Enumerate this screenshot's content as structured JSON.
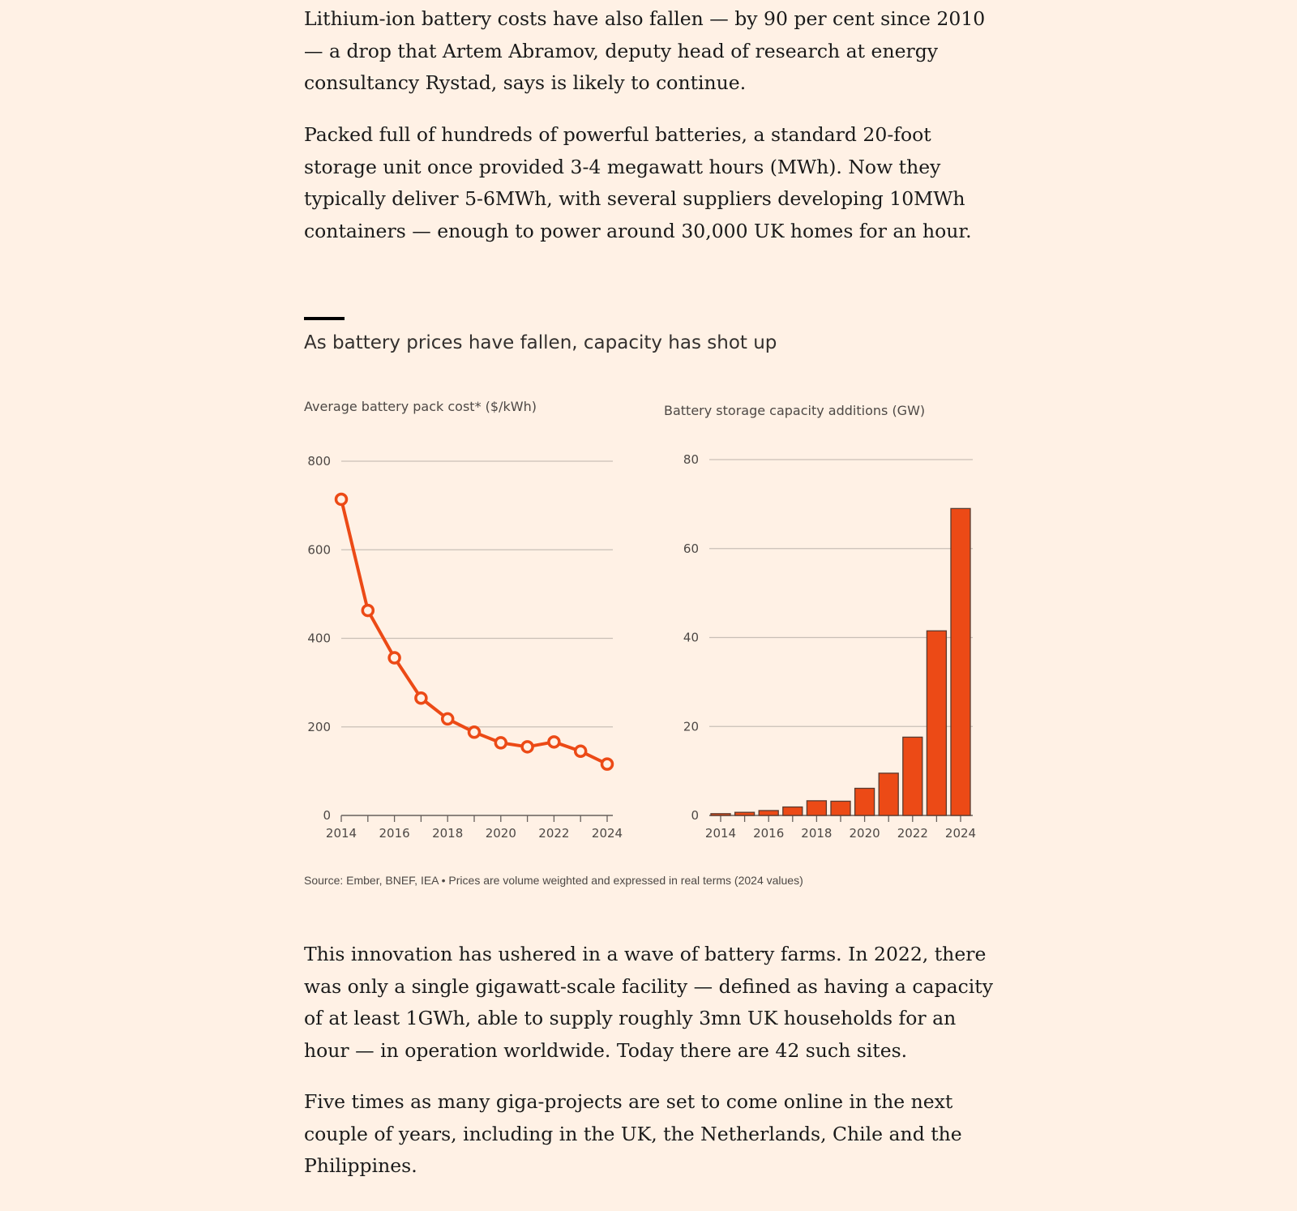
{
  "article": {
    "paragraphs": [
      "Lithium-ion battery costs have also fallen — by 90 per cent since 2010 — a drop that Artem Abramov, deputy head of research at energy consultancy Rystad, says is likely to continue.",
      "Packed full of hundreds of powerful batteries, a standard 20-foot storage unit once provided 3-4 megawatt hours (MWh). Now they typically deliver 5-6MWh, with several suppliers developing 10MWh containers — enough to power around 30,000 UK homes for an hour.",
      "This innovation has ushered in a wave of battery farms. In 2022, there was only a single gigawatt-scale facility — defined as having a capacity of at least 1GWh, able to supply roughly 3mn UK households for an hour — in operation worldwide. Today there are 42 such sites.",
      "Five times as many giga-projects are set to come online in the next couple of years, including in the UK, the Netherlands, Chile and the Philippines."
    ]
  },
  "figure": {
    "title": "As battery prices have fallen, capacity has shot up",
    "source": "Source: Ember, BNEF, IEA • Prices are volume weighted and expressed in real terms (2024 values)"
  },
  "colors": {
    "accent": "#ec4a16",
    "grid": "#c9bfb6",
    "axis": "#66605c"
  },
  "chart_data": [
    {
      "type": "line",
      "title": "Average battery pack cost* ($/kWh)",
      "x": [
        2014,
        2015,
        2016,
        2017,
        2018,
        2019,
        2020,
        2021,
        2022,
        2023,
        2024
      ],
      "values": [
        714,
        463,
        356,
        265,
        218,
        188,
        164,
        155,
        166,
        145,
        116
      ],
      "xticks": [
        "2014",
        "2016",
        "2018",
        "2020",
        "2022",
        "2024"
      ],
      "yticks": [
        "0",
        "200",
        "400",
        "600",
        "800"
      ],
      "ylim": [
        0,
        800
      ],
      "grid": true
    },
    {
      "type": "bar",
      "title": "Battery storage capacity additions (GW)",
      "x": [
        2014,
        2015,
        2016,
        2017,
        2018,
        2019,
        2020,
        2021,
        2022,
        2023,
        2024
      ],
      "values": [
        0.4,
        0.7,
        1.1,
        1.9,
        3.3,
        3.2,
        6.1,
        9.5,
        17.6,
        41.5,
        69.0
      ],
      "xticks": [
        "2014",
        "2016",
        "2018",
        "2020",
        "2022",
        "2024"
      ],
      "yticks": [
        "0",
        "20",
        "40",
        "60",
        "80"
      ],
      "ylim": [
        0,
        80
      ],
      "grid": true
    }
  ]
}
